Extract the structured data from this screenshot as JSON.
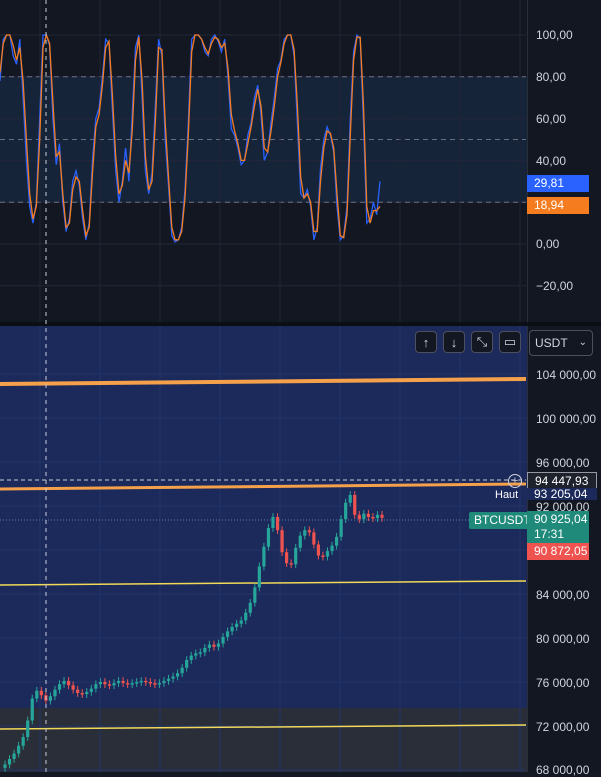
{
  "oscillator": {
    "ticks": [
      "100,00",
      "80,00",
      "60,00",
      "40,00",
      "0,00",
      "−20,00"
    ],
    "k_value": "29,81",
    "d_value": "18,94",
    "k_color": "#2962ff",
    "d_color": "#f57c1f",
    "k_series": [
      78,
      98,
      100,
      100,
      90,
      86,
      98,
      70,
      40,
      18,
      10,
      20,
      60,
      100,
      100,
      95,
      60,
      38,
      48,
      20,
      6,
      12,
      30,
      35,
      28,
      12,
      2,
      10,
      40,
      60,
      65,
      80,
      98,
      96,
      65,
      35,
      20,
      30,
      46,
      30,
      62,
      94,
      100,
      70,
      35,
      24,
      34,
      66,
      98,
      90,
      50,
      28,
      4,
      1,
      2,
      8,
      26,
      58,
      98,
      100,
      100,
      98,
      92,
      90,
      98,
      100,
      97,
      92,
      98,
      80,
      55,
      52,
      46,
      38,
      40,
      52,
      58,
      70,
      76,
      62,
      40,
      44,
      58,
      70,
      84,
      88,
      98,
      100,
      100,
      90,
      58,
      24,
      22,
      26,
      18,
      2,
      8,
      36,
      50,
      56,
      52,
      44,
      18,
      2,
      4,
      18,
      60,
      92,
      100,
      98,
      58,
      10,
      12,
      20,
      14,
      30
    ],
    "d_series": [
      82,
      96,
      100,
      100,
      95,
      88,
      94,
      78,
      50,
      24,
      12,
      18,
      50,
      94,
      100,
      96,
      68,
      42,
      44,
      24,
      8,
      10,
      26,
      32,
      30,
      16,
      4,
      8,
      34,
      56,
      62,
      76,
      94,
      97,
      72,
      42,
      24,
      28,
      40,
      34,
      54,
      88,
      99,
      78,
      42,
      26,
      30,
      58,
      94,
      93,
      58,
      32,
      8,
      2,
      2,
      6,
      22,
      52,
      92,
      100,
      100,
      98,
      94,
      91,
      96,
      99,
      98,
      94,
      96,
      84,
      62,
      54,
      48,
      40,
      40,
      48,
      56,
      66,
      74,
      66,
      46,
      44,
      54,
      66,
      80,
      87,
      96,
      100,
      100,
      93,
      66,
      32,
      22,
      24,
      20,
      6,
      6,
      30,
      46,
      54,
      53,
      46,
      24,
      4,
      3,
      14,
      52,
      88,
      99,
      99,
      66,
      18,
      10,
      16,
      16,
      18
    ]
  },
  "price": {
    "ticks": [
      "104 000,00",
      "100 000,00",
      "96 000,00",
      "92 000,00",
      "84 000,00",
      "80 000,00",
      "76 000,00",
      "72 000,00",
      "68 000,00"
    ],
    "crosshair_value": "94 447,93",
    "high_label": "Haut",
    "high_value": "93 205,04",
    "symbol": "BTCUSDT",
    "last_price": "90 925,04",
    "countdown": "17:31",
    "low_value": "90 872,05",
    "up_color": "#26a69a",
    "down_color": "#ef5350",
    "orange_line_color": "#f5a04a",
    "yellow_line_color": "#f2d957",
    "closes": [
      68500,
      69000,
      69500,
      70200,
      71000,
      72500,
      74500,
      75200,
      74800,
      74300,
      74700,
      75300,
      75800,
      76100,
      75700,
      75300,
      75000,
      74900,
      75100,
      75400,
      75800,
      76000,
      75800,
      75700,
      75900,
      76100,
      75900,
      75800,
      75900,
      76000,
      76100,
      76000,
      75900,
      75800,
      75900,
      76100,
      76300,
      76500,
      76800,
      77300,
      78000,
      78400,
      78600,
      78700,
      79100,
      79400,
      79200,
      79500,
      80100,
      80600,
      81000,
      81300,
      81600,
      82300,
      83200,
      84600,
      86500,
      88300,
      90000,
      91000,
      89800,
      87800,
      86800,
      86700,
      88200,
      89300,
      89800,
      89600,
      88500,
      87500,
      87400,
      87900,
      88400,
      89200,
      90800,
      92300,
      93000,
      91200,
      90800,
      91300,
      91000,
      90900,
      91200,
      90925
    ]
  },
  "controls": {
    "currency": "USDT",
    "up_arrow": "↑",
    "down_arrow": "↓",
    "collapse": "⤡",
    "maximize": "▭"
  }
}
